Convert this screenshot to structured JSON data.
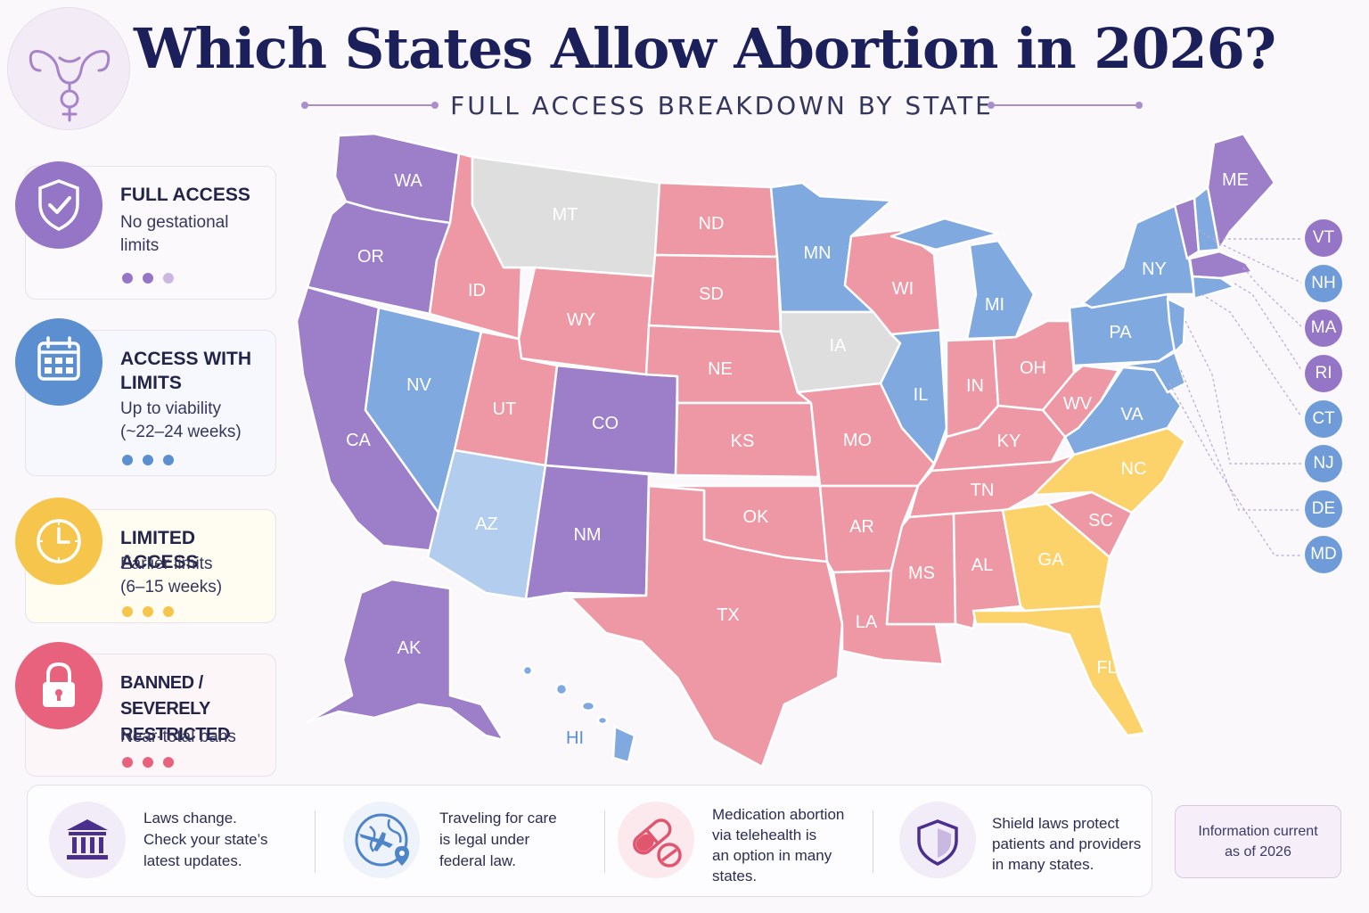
{
  "header": {
    "title": "Which States Allow Abortion in 2026?",
    "subtitle": "FULL ACCESS BREAKDOWN BY STATE",
    "logo_icon": "uterus-venus-icon"
  },
  "colors": {
    "full": "#9d7ec9",
    "limits": "#80aadf",
    "limits_light": "#b3cdee",
    "limited": "#fcd26a",
    "banned": "#ed98a4",
    "no_data": "#dedede",
    "accent_purple": "#9575c6"
  },
  "legend": [
    {
      "id": "full",
      "title": "FULL ACCESS",
      "desc": "No gestational\nlimits",
      "icon": "shield-check-icon"
    },
    {
      "id": "limits",
      "title": "ACCESS WITH\nLIMITS",
      "desc": "Up to viability\n(~22–24 weeks)",
      "icon": "calendar-icon"
    },
    {
      "id": "limited",
      "title": "LIMITED ACCESS",
      "desc": "Earlier limits\n(6–15 weeks)",
      "icon": "clock-icon"
    },
    {
      "id": "banned",
      "title": "BANNED /\nSEVERELY RESTRICTED",
      "desc": "Near-total bans",
      "icon": "padlock-icon"
    }
  ],
  "states": {
    "WA": "WA",
    "OR": "OR",
    "CA": "CA",
    "ID": "ID",
    "NV": "NV",
    "MT": "MT",
    "WY": "WY",
    "UT": "UT",
    "AZ": "AZ",
    "CO": "CO",
    "NM": "NM",
    "ND": "ND",
    "SD": "SD",
    "NE": "NE",
    "KS": "KS",
    "OK": "OK",
    "TX": "TX",
    "MN": "MN",
    "IA": "IA",
    "MO": "MO",
    "AR": "AR",
    "LA": "LA",
    "WI": "WI",
    "IL": "IL",
    "MI": "MI",
    "IN": "IN",
    "OH": "OH",
    "KY": "KY",
    "TN": "TN",
    "MS": "MS",
    "AL": "AL",
    "GA": "GA",
    "FL": "FL",
    "SC": "SC",
    "NC": "NC",
    "VA": "VA",
    "WV": "WV",
    "PA": "PA",
    "NY": "NY",
    "ME": "ME",
    "AK": "AK",
    "HI": "HI"
  },
  "northeast_labels": [
    {
      "abbr": "VT",
      "status": "full"
    },
    {
      "abbr": "NH",
      "status": "limits"
    },
    {
      "abbr": "MA",
      "status": "full"
    },
    {
      "abbr": "RI",
      "status": "full"
    },
    {
      "abbr": "CT",
      "status": "limits"
    },
    {
      "abbr": "NJ",
      "status": "limits"
    },
    {
      "abbr": "DE",
      "status": "limits"
    },
    {
      "abbr": "MD",
      "status": "limits"
    }
  ],
  "footer": [
    {
      "icon": "bank-building-icon",
      "text": "Laws change.\nCheck your state’s\nlatest updates."
    },
    {
      "icon": "globe-plane-icon",
      "text": "Traveling for care\nis legal under\nfederal law."
    },
    {
      "icon": "pill-capsule-icon",
      "text": "Medication abortion\nvia telehealth is\nan option in many\nstates."
    },
    {
      "icon": "shield-icon",
      "text": "Shield laws protect\npatients and providers\nin many states."
    }
  ],
  "info_note": "Information current\nas of 2026"
}
